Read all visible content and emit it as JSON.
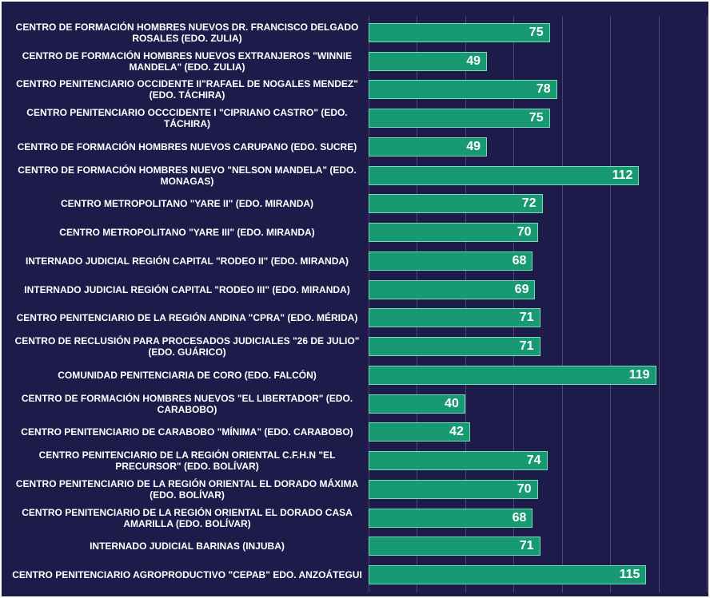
{
  "chart_data": {
    "type": "bar",
    "orientation": "horizontal",
    "categories": [
      "CENTRO DE FORMACIÓN HOMBRES NUEVOS DR. FRANCISCO DELGADO ROSALES (EDO. ZULIA)",
      "CENTRO DE FORMACIÓN HOMBRES NUEVOS EXTRANJEROS \"WINNIE MANDELA\" (EDO. ZULIA)",
      "CENTRO PENITENCIARIO OCCIDENTE II\"RAFAEL DE NOGALES MENDEZ\" (EDO. TÁCHIRA)",
      "CENTRO PENITENCIARIO OCCCIDENTE I \"CIPRIANO CASTRO\" (EDO. TÁCHIRA)",
      "CENTRO DE FORMACIÓN HOMBRES NUEVOS CARUPANO (EDO. SUCRE)",
      "CENTRO DE FORMACIÓN HOMBRES NUEVO  \"NELSON MANDELA\" (EDO. MONAGAS)",
      "CENTRO METROPOLITANO \"YARE II\" (EDO. MIRANDA)",
      "CENTRO METROPOLITANO \"YARE III\" (EDO. MIRANDA)",
      "INTERNADO JUDICIAL REGIÓN CAPITAL \"RODEO II\" (EDO. MIRANDA)",
      "INTERNADO JUDICIAL REGIÓN CAPITAL \"RODEO III\" (EDO. MIRANDA)",
      "CENTRO PENITENCIARIO DE LA REGIÓN ANDINA \"CPRA\" (EDO. MÉRIDA)",
      "CENTRO DE RECLUSIÓN PARA PROCESADOS JUDICIALES \"26 DE JULIO\" (EDO. GUÁRICO)",
      "COMUNIDAD PENITENCIARIA DE CORO (EDO. FALCÓN)",
      "CENTRO DE FORMACIÓN HOMBRES NUEVOS \"EL LIBERTADOR\" (EDO. CARABOBO)",
      "CENTRO PENITENCIARIO DE CARABOBO \"MÍNIMA\" (EDO. CARABOBO)",
      "CENTRO PENITENCIARIO DE LA REGIÓN ORIENTAL C.F.H.N \"EL PRECURSOR\" (EDO. BOLÍVAR)",
      "CENTRO PENITENCIARIO DE LA REGIÓN ORIENTAL EL DORADO MÁXIMA (EDO. BOLÍVAR)",
      "CENTRO PENITENCIARIO DE LA REGIÓN ORIENTAL EL DORADO  CASA AMARILLA (EDO. BOLÍVAR)",
      "INTERNADO JUDICIAL BARINAS (INJUBA)",
      "CENTRO PENITENCIARIO AGROPRODUCTIVO \"CEPAB\" EDO. ANZOÁTEGUI"
    ],
    "values": [
      75,
      49,
      78,
      75,
      49,
      112,
      72,
      70,
      68,
      69,
      71,
      71,
      119,
      40,
      42,
      74,
      70,
      68,
      71,
      115
    ],
    "color": "#179a72",
    "xlim": [
      0,
      140
    ],
    "xticks": [
      0,
      20,
      40,
      60,
      80,
      100,
      120,
      140
    ],
    "grid": true
  }
}
